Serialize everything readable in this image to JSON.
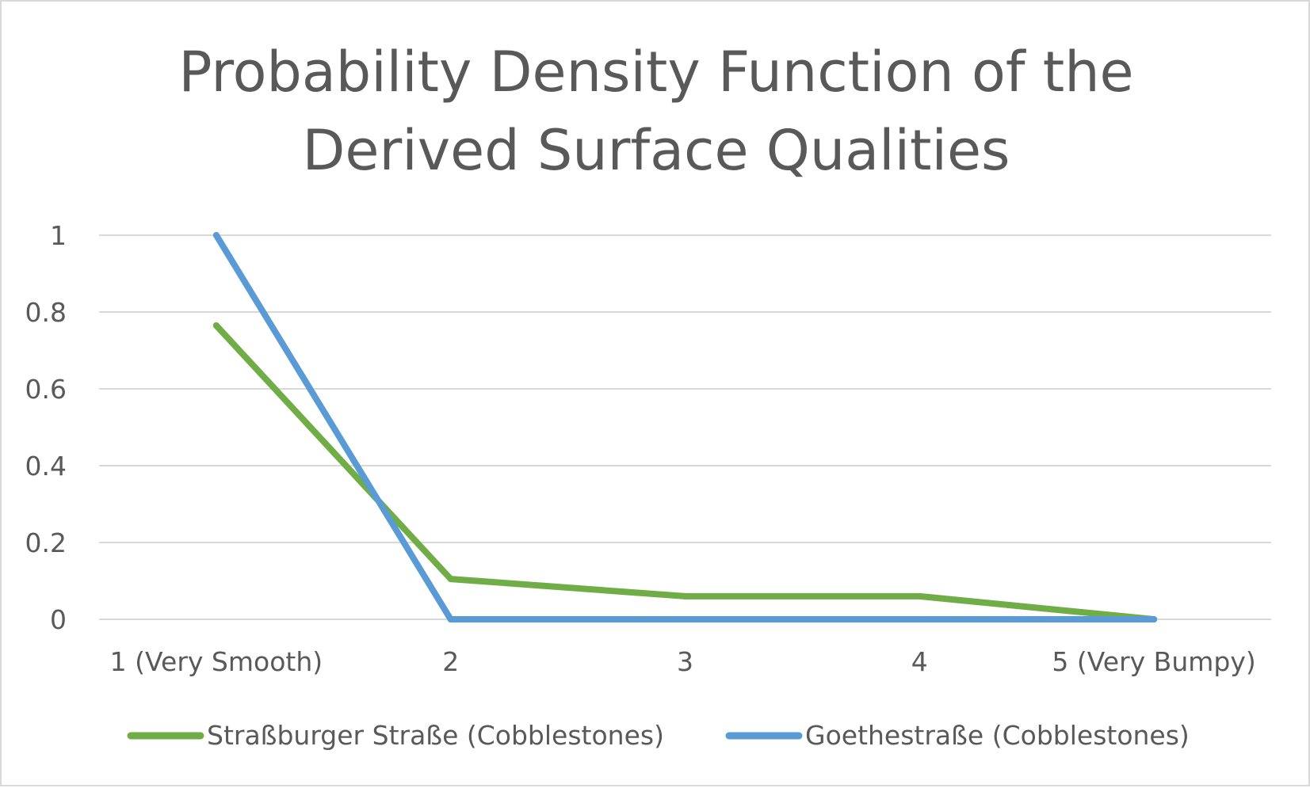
{
  "chart_data": {
    "type": "line",
    "title": "Probability Density Function of the Derived Surface Qualities",
    "title_lines": [
      "Probability Density Function of the",
      "Derived Surface Qualities"
    ],
    "xlabel": "",
    "ylabel": "",
    "categories": [
      "1 (Very Smooth)",
      "2",
      "3",
      "4",
      "5 (Very Bumpy)"
    ],
    "ylim": [
      0,
      1
    ],
    "yticks": [
      0,
      0.2,
      0.4,
      0.6,
      0.8,
      1
    ],
    "ytick_labels": [
      "0",
      "0.2",
      "0.4",
      "0.6",
      "0.8",
      "1"
    ],
    "grid": true,
    "legend_position": "bottom",
    "series": [
      {
        "name": "Straßburger Straße (Cobblestones)",
        "color": "#70ad47",
        "values": [
          0.765,
          0.105,
          0.06,
          0.06,
          0.0
        ]
      },
      {
        "name": "Goethestraße (Cobblestones)",
        "color": "#5b9bd5",
        "values": [
          1.0,
          0.0,
          0.0,
          0.0,
          0.0
        ]
      }
    ]
  }
}
